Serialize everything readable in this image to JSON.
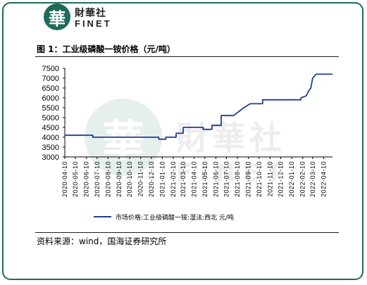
{
  "brand": {
    "logo_char": "華",
    "name_cn": "財華社",
    "name_en": "FINET"
  },
  "watermark": {
    "seal_char": "華",
    "text_cn": "財華社",
    "text_en": "FINET"
  },
  "figure_title": "图 1：工业级磷酸一铵价格（元/吨）",
  "source_note": "资料来源：wind，国海证券研究所",
  "colors": {
    "brand_green": "#1f6b5a",
    "series_line": "#1f3f8f"
  },
  "chart_data": {
    "type": "line",
    "title": "",
    "xlabel": "",
    "ylabel": "",
    "ylim": [
      3000,
      7500
    ],
    "yticks": [
      3000,
      3500,
      4000,
      4500,
      5000,
      5500,
      6000,
      6500,
      7000,
      7500
    ],
    "xticks": [
      "2020-04-10",
      "2020-05-10",
      "2020-06-10",
      "2020-07-10",
      "2020-08-10",
      "2020-09-10",
      "2020-10-10",
      "2020-11-10",
      "2020-12-10",
      "2021-01-10",
      "2021-02-10",
      "2021-03-10",
      "2021-04-10",
      "2021-05-10",
      "2021-06-10",
      "2021-07-10",
      "2021-08-10",
      "2021-09-10",
      "2021-10-10",
      "2021-11-10",
      "2021-12-10",
      "2022-01-10",
      "2022-02-10",
      "2022-03-10",
      "2022-04-10"
    ],
    "xlim": [
      "2020-04-10",
      "2022-05-05"
    ],
    "grid": false,
    "legend_position": "bottom",
    "series": [
      {
        "name": "市场价格:工业级磷酸一铵:湿法:西北 元/吨",
        "points": [
          [
            "2020-04-10",
            4100
          ],
          [
            "2020-06-28",
            4100
          ],
          [
            "2020-06-28",
            4000
          ],
          [
            "2020-12-31",
            4000
          ],
          [
            "2020-12-31",
            3900
          ],
          [
            "2021-01-20",
            3900
          ],
          [
            "2021-01-20",
            4000
          ],
          [
            "2021-02-18",
            4000
          ],
          [
            "2021-02-18",
            4200
          ],
          [
            "2021-03-10",
            4200
          ],
          [
            "2021-03-10",
            4500
          ],
          [
            "2021-05-05",
            4500
          ],
          [
            "2021-05-05",
            4400
          ],
          [
            "2021-05-30",
            4400
          ],
          [
            "2021-05-30",
            4600
          ],
          [
            "2021-06-25",
            4600
          ],
          [
            "2021-06-25",
            5100
          ],
          [
            "2021-07-30",
            5100
          ],
          [
            "2021-08-28",
            5500
          ],
          [
            "2021-09-15",
            5700
          ],
          [
            "2021-10-20",
            5700
          ],
          [
            "2021-10-20",
            5900
          ],
          [
            "2022-01-10",
            5900
          ],
          [
            "2022-02-05",
            5900
          ],
          [
            "2022-02-05",
            6000
          ],
          [
            "2022-02-20",
            6100
          ],
          [
            "2022-02-25",
            6300
          ],
          [
            "2022-03-05",
            6500
          ],
          [
            "2022-03-10",
            7000
          ],
          [
            "2022-03-20",
            7200
          ],
          [
            "2022-05-05",
            7200
          ]
        ]
      }
    ]
  }
}
